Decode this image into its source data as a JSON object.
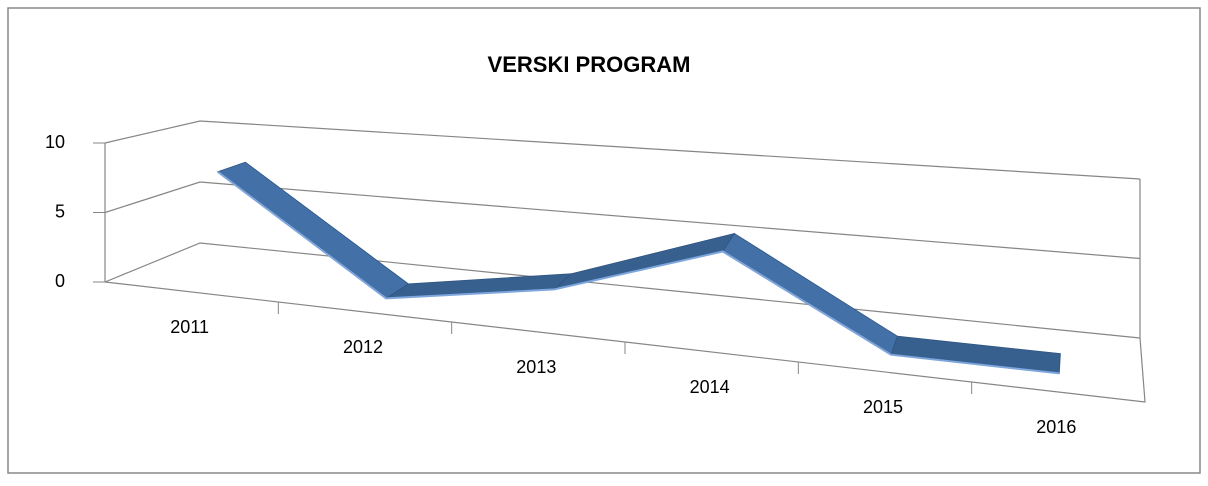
{
  "chart_data": {
    "type": "line",
    "title": "VERSKI PROGRAM",
    "categories": [
      "2011",
      "2012",
      "2013",
      "2014",
      "2015",
      "2016"
    ],
    "values": [
      8,
      0,
      2,
      6,
      0,
      0
    ],
    "color": "#4470a8",
    "ylim": [
      0,
      10
    ],
    "yticks": [
      0,
      5,
      10
    ],
    "grid": true
  }
}
